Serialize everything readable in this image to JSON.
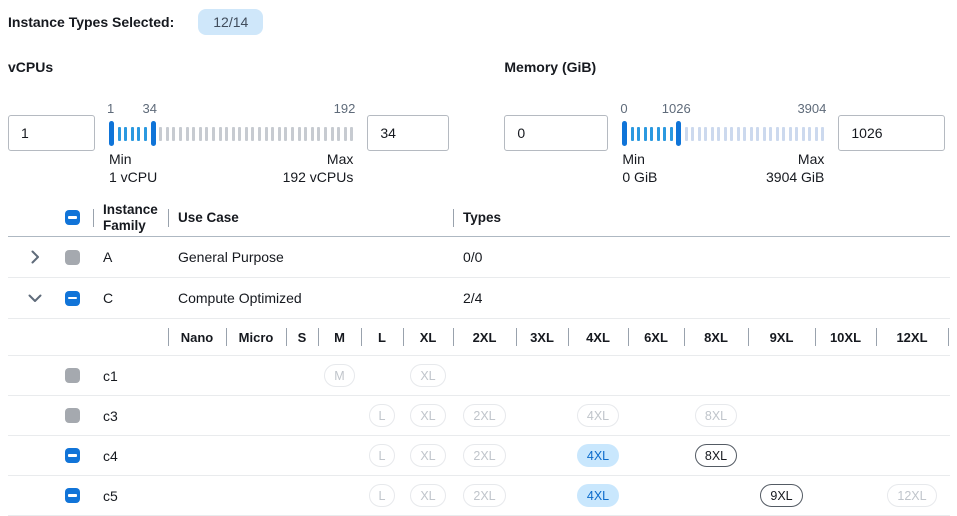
{
  "header": {
    "selected_label": "Instance Types Selected:",
    "selected_badge": "12/14"
  },
  "filters": [
    {
      "id": "vcpus",
      "title": "vCPUs",
      "min_input": "1",
      "max_input": "34",
      "slider": {
        "start_label": "1",
        "handle_label": "34",
        "end_label": "192",
        "ticks_total": 37,
        "handle1_index": 0,
        "handle2_index": 6,
        "inactive_color": "#c7cbd1"
      },
      "min_caption": "Min",
      "min_detail": "1 vCPU",
      "max_caption": "Max",
      "max_detail": "192 vCPUs"
    },
    {
      "id": "memory",
      "title": "Memory (GiB)",
      "min_input": "0",
      "max_input": "1026",
      "slider": {
        "start_label": "0",
        "handle_label": "1026",
        "end_label": "3904",
        "ticks_total": 31,
        "handle1_index": 0,
        "handle2_index": 8,
        "inactive_color": "#ccd9ee"
      },
      "min_caption": "Min",
      "min_detail": "0 GiB",
      "max_caption": "Max",
      "max_detail": "3904 GiB"
    }
  ],
  "table": {
    "columns": {
      "family": "Instance Family",
      "use_case": "Use Case",
      "types": "Types"
    },
    "size_columns": [
      "Nano",
      "Micro",
      "S",
      "M",
      "L",
      "XL",
      "2XL",
      "3XL",
      "4XL",
      "6XL",
      "8XL",
      "9XL",
      "10XL",
      "12XL"
    ],
    "family_rows": [
      {
        "name": "A",
        "use_case": "General Purpose",
        "types": "0/0",
        "expanded": false,
        "checkbox": "disabled"
      },
      {
        "name": "C",
        "use_case": "Compute Optimized",
        "types": "2/4",
        "expanded": true,
        "checkbox": "indeterminate"
      }
    ],
    "instance_rows": [
      {
        "name": "c1",
        "checkbox": "disabled",
        "chips": [
          {
            "size": "M",
            "state": "disabled"
          },
          {
            "size": "XL",
            "state": "disabled"
          }
        ]
      },
      {
        "name": "c3",
        "checkbox": "disabled",
        "chips": [
          {
            "size": "L",
            "state": "disabled"
          },
          {
            "size": "XL",
            "state": "disabled"
          },
          {
            "size": "2XL",
            "state": "disabled"
          },
          {
            "size": "4XL",
            "state": "disabled"
          },
          {
            "size": "8XL",
            "state": "disabled"
          }
        ]
      },
      {
        "name": "c4",
        "checkbox": "indeterminate",
        "chips": [
          {
            "size": "L",
            "state": "disabled"
          },
          {
            "size": "XL",
            "state": "disabled"
          },
          {
            "size": "2XL",
            "state": "disabled"
          },
          {
            "size": "4XL",
            "state": "selected"
          },
          {
            "size": "8XL",
            "state": "enabled"
          }
        ]
      },
      {
        "name": "c5",
        "checkbox": "indeterminate",
        "chips": [
          {
            "size": "L",
            "state": "disabled"
          },
          {
            "size": "XL",
            "state": "disabled"
          },
          {
            "size": "2XL",
            "state": "disabled"
          },
          {
            "size": "4XL",
            "state": "selected"
          },
          {
            "size": "9XL",
            "state": "enabled"
          },
          {
            "size": "12XL",
            "state": "disabled"
          }
        ]
      }
    ]
  },
  "colors": {
    "accent_blue": "#1174d8",
    "badge_bg": "#cfe7fa",
    "slider_active_tick": "#2b99e0",
    "vcpu_inactive_tick": "#c7cbd1",
    "memory_inactive_tick": "#ccd9ee",
    "chip_selected_bg": "#c9e7fd",
    "chip_selected_text": "#0b6bcb",
    "disabled_checkbox": "#a5a9af"
  }
}
